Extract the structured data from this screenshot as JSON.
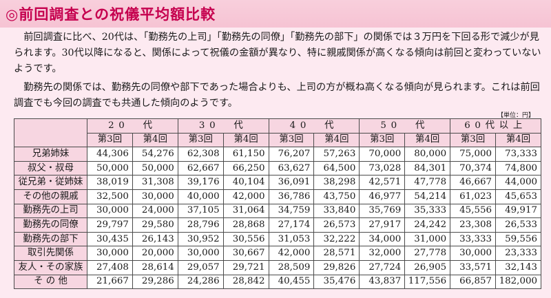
{
  "title": "◎前回調査との祝儀平均額比較",
  "paragraphs": [
    "前回調査に比べ、20代は、「勤務先の上司」「勤務先の同僚」「勤務先の部下」の関係では３万円を下回る形で減少が見られます。30代以降になると、関係によって祝儀の金額が異なり、特に親戚関係が高くなる傾向は前回と変わっていないようです。",
    "勤務先の関係では、勤務先の同僚や部下であった場合よりも、上司の方が概ね高くなる傾向が見られます。これは前回調査でも今回の調査でも共通した傾向のようです。"
  ],
  "unit": "【単位：円】",
  "table": {
    "age_groups": [
      "20　代",
      "30　代",
      "40　代",
      "50　代",
      "60代以上"
    ],
    "rounds": [
      "第3回",
      "第4回"
    ],
    "rows": [
      {
        "label": "兄弟姉妹",
        "values": [
          "44,306",
          "54,276",
          "62,308",
          "61,150",
          "76,207",
          "57,263",
          "70,000",
          "80,000",
          "75,000",
          "73,333"
        ]
      },
      {
        "label": "叔父・叔母",
        "values": [
          "50,000",
          "50,000",
          "62,667",
          "66,250",
          "63,627",
          "64,500",
          "73,028",
          "84,301",
          "70,374",
          "74,800"
        ]
      },
      {
        "label": "従兄弟・従姉妹",
        "values": [
          "38,019",
          "31,308",
          "39,176",
          "40,104",
          "36,091",
          "38,298",
          "42,571",
          "47,778",
          "46,667",
          "44,000"
        ]
      },
      {
        "label": "その他の親戚",
        "values": [
          "32,500",
          "30,000",
          "40,000",
          "42,000",
          "36,786",
          "43,750",
          "46,977",
          "54,214",
          "61,023",
          "45,653"
        ]
      },
      {
        "label": "勤務先の上司",
        "values": [
          "30,000",
          "24,000",
          "37,105",
          "31,064",
          "34,759",
          "33,840",
          "35,769",
          "35,333",
          "45,556",
          "49,917"
        ]
      },
      {
        "label": "勤務先の同僚",
        "values": [
          "29,797",
          "29,580",
          "28,796",
          "28,868",
          "27,174",
          "26,573",
          "27,917",
          "24,242",
          "23,308",
          "26,533"
        ]
      },
      {
        "label": "勤務先の部下",
        "values": [
          "30,435",
          "26,143",
          "30,952",
          "30,556",
          "31,053",
          "32,222",
          "34,000",
          "31,000",
          "33,333",
          "59,556"
        ]
      },
      {
        "label": "取引先関係",
        "values": [
          "30,000",
          "20,000",
          "30,000",
          "30,667",
          "42,000",
          "28,571",
          "32,000",
          "27,778",
          "30,000",
          "23,333"
        ]
      },
      {
        "label": "友人・その家族",
        "values": [
          "27,408",
          "28,614",
          "29,057",
          "29,721",
          "28,509",
          "29,826",
          "27,724",
          "26,905",
          "33,571",
          "32,143"
        ]
      },
      {
        "label": "そ の 他",
        "values": [
          "21,667",
          "29,286",
          "24,286",
          "28,842",
          "40,455",
          "35,476",
          "43,837",
          "117,556",
          "66,857",
          "182,000"
        ]
      }
    ]
  }
}
